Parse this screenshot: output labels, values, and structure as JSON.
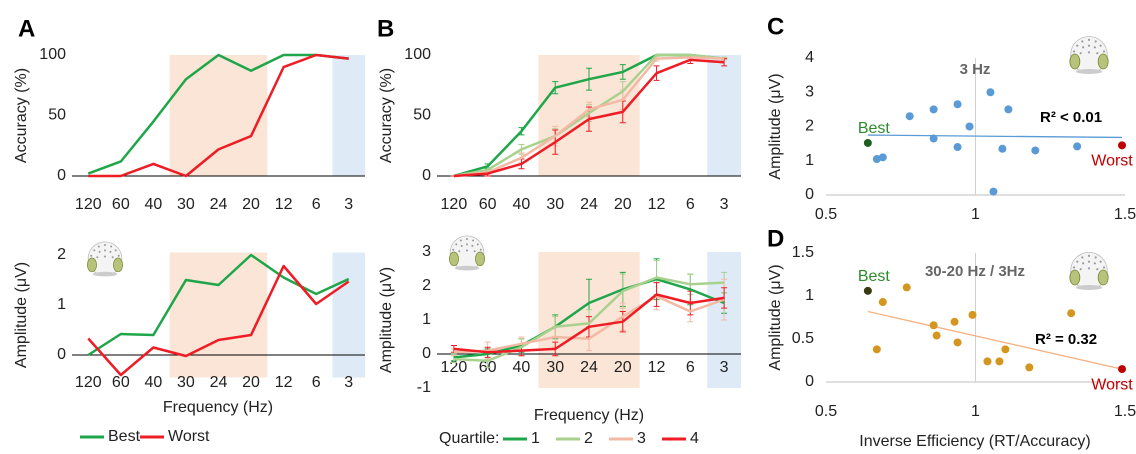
{
  "chart_data": [
    {
      "type": "line",
      "label": "A",
      "ylabel": "Accuracy (%)",
      "categories": [
        "120",
        "60",
        "40",
        "30",
        "24",
        "20",
        "12",
        "6",
        "3"
      ],
      "ylim": [
        0,
        100
      ],
      "yticks": [
        0,
        50,
        100
      ],
      "shaded": [
        {
          "from": "30",
          "to": "20",
          "color": "#fbe5d6"
        },
        {
          "from": "3",
          "to": "3",
          "color": "#deebf7"
        }
      ],
      "series": [
        {
          "name": "Best",
          "color": "#1fa64a",
          "values": [
            2,
            12,
            45,
            80,
            100,
            87,
            100,
            100,
            97
          ]
        },
        {
          "name": "Worst",
          "color": "#ee1c25",
          "values": [
            0,
            0,
            10,
            0,
            22,
            33,
            90,
            100,
            97
          ]
        }
      ]
    },
    {
      "type": "line",
      "ylabel": "Amplitude (μV)",
      "xlabel": "Frequency (Hz)",
      "categories": [
        "120",
        "60",
        "40",
        "30",
        "24",
        "20",
        "12",
        "6",
        "3"
      ],
      "ylim": [
        -0.45,
        2.05
      ],
      "yticks": [
        0,
        1,
        2
      ],
      "shaded": [
        {
          "from": "30",
          "to": "20",
          "color": "#fbe5d6"
        },
        {
          "from": "3",
          "to": "3",
          "color": "#deebf7"
        }
      ],
      "series": [
        {
          "color": "#1fa64a",
          "values": [
            0,
            0.42,
            0.4,
            1.5,
            1.4,
            2.0,
            1.55,
            1.22,
            1.52
          ]
        },
        {
          "color": "#ee1c25",
          "values": [
            0.33,
            -0.4,
            0.15,
            -0.02,
            0.3,
            0.4,
            1.78,
            1.02,
            1.47
          ]
        }
      ]
    },
    {
      "type": "line",
      "label": "B",
      "ylabel": "Accuracy (%)",
      "legend_title": "Quartile:",
      "categories": [
        "120",
        "60",
        "40",
        "30",
        "24",
        "20",
        "12",
        "6",
        "3"
      ],
      "ylim": [
        0,
        100
      ],
      "yticks": [
        0,
        50,
        100
      ],
      "shaded": [
        {
          "from": "30",
          "to": "20",
          "color": "#fbe5d6"
        },
        {
          "from": "3",
          "to": "3",
          "color": "#deebf7"
        }
      ],
      "series": [
        {
          "name": "1",
          "color": "#1fa64a",
          "values": [
            0,
            8,
            37,
            73,
            80,
            86,
            100,
            100,
            97
          ],
          "errors": [
            0,
            2,
            3,
            5,
            9,
            6,
            0,
            0,
            1
          ]
        },
        {
          "name": "2",
          "color": "#a9d18e",
          "values": [
            0,
            5,
            22,
            33,
            52,
            70,
            100,
            100,
            97
          ],
          "errors": [
            0,
            2,
            4,
            6,
            7,
            8,
            0,
            0,
            1
          ]
        },
        {
          "name": "3",
          "color": "#f4b9a4",
          "values": [
            0,
            3,
            15,
            33,
            55,
            63,
            97,
            98,
            97
          ],
          "errors": [
            0,
            2,
            4,
            8,
            6,
            8,
            2,
            2,
            1
          ]
        },
        {
          "name": "4",
          "color": "#ee1c25",
          "values": [
            0,
            2,
            10,
            28,
            47,
            53,
            85,
            96,
            94
          ],
          "errors": [
            0,
            2,
            4,
            10,
            10,
            9,
            6,
            3,
            3
          ]
        }
      ]
    },
    {
      "type": "line",
      "ylabel": "Amplitude (μV)",
      "xlabel": "Frequency (Hz)",
      "categories": [
        "120",
        "60",
        "40",
        "30",
        "24",
        "20",
        "12",
        "6",
        "3"
      ],
      "ylim": [
        -1,
        3
      ],
      "yticks": [
        -1,
        0,
        1,
        2,
        3
      ],
      "shaded": [
        {
          "from": "30",
          "to": "20",
          "color": "#fbe5d6"
        },
        {
          "from": "3",
          "to": "3",
          "color": "#deebf7"
        }
      ],
      "series": [
        {
          "color": "#1fa64a",
          "values": [
            -0.1,
            0,
            0.25,
            0.8,
            1.5,
            1.9,
            2.2,
            1.9,
            1.5
          ],
          "errors": [
            0.1,
            0.15,
            0.2,
            0.35,
            0.7,
            0.5,
            0.6,
            0.45,
            0.3
          ]
        },
        {
          "color": "#a9d18e",
          "values": [
            -0.15,
            -0.2,
            0.2,
            0.8,
            0.9,
            1.85,
            2.25,
            2.05,
            2.1
          ],
          "errors": [
            0.1,
            0.2,
            0.25,
            0.3,
            0.4,
            0.5,
            0.5,
            0.3,
            0.3
          ]
        },
        {
          "color": "#f4b9a4",
          "values": [
            0.05,
            0.1,
            0.3,
            0.5,
            0.45,
            1.1,
            1.7,
            1.25,
            1.6
          ],
          "errors": [
            0.1,
            0.25,
            0.2,
            0.3,
            0.35,
            0.4,
            0.4,
            0.3,
            0.6
          ]
        },
        {
          "color": "#ee1c25",
          "values": [
            0.15,
            0.05,
            0.1,
            0.15,
            0.8,
            0.95,
            1.75,
            1.5,
            1.65
          ],
          "errors": [
            0.1,
            0.15,
            0.15,
            0.2,
            0.3,
            0.3,
            0.35,
            0.35,
            0.3
          ]
        }
      ]
    },
    {
      "type": "scatter",
      "label": "C",
      "title": "3 Hz",
      "ylabel": "Amplitude (μV)",
      "annotation": "R² < 0.01",
      "best_label": "Best",
      "worst_label": "Worst",
      "xlim": [
        0.5,
        1.5
      ],
      "xticks": [
        0.5,
        1,
        1.5
      ],
      "ylim": [
        0,
        4
      ],
      "yticks": [
        0,
        1,
        2,
        3,
        4
      ],
      "yaxis_at": 1,
      "x": [
        0.64,
        0.67,
        0.69,
        0.78,
        0.86,
        0.86,
        0.94,
        0.94,
        0.98,
        1.05,
        1.06,
        1.09,
        1.11,
        1.2,
        1.34,
        1.49
      ],
      "y": [
        1.52,
        1.05,
        1.1,
        2.3,
        2.5,
        1.65,
        2.65,
        1.4,
        2.0,
        3.0,
        0.1,
        1.35,
        2.5,
        1.3,
        1.42,
        1.45
      ],
      "colors": [
        "#1e5e1e",
        "#5b9bd5",
        "#5b9bd5",
        "#5b9bd5",
        "#5b9bd5",
        "#5b9bd5",
        "#5b9bd5",
        "#5b9bd5",
        "#5b9bd5",
        "#5b9bd5",
        "#5b9bd5",
        "#5b9bd5",
        "#5b9bd5",
        "#5b9bd5",
        "#5b9bd5",
        "#c00000"
      ],
      "trend": {
        "x": [
          0.64,
          1.49
        ],
        "y": [
          1.75,
          1.68
        ],
        "color": "#5b9bd5"
      }
    },
    {
      "type": "scatter",
      "label": "D",
      "title": "30-20 Hz / 3Hz",
      "ylabel": "Amplitude (μV)",
      "xlabel": "Inverse Efficiency (RT/Accuracy)",
      "annotation": "R² = 0.32",
      "best_label": "Best",
      "worst_label": "Worst",
      "xlim": [
        0.5,
        1.5
      ],
      "xticks": [
        0.5,
        1,
        1.5
      ],
      "ylim": [
        0,
        1.5
      ],
      "yticks": [
        0,
        0.5,
        1,
        1.5
      ],
      "yaxis_at": 1,
      "x": [
        0.64,
        0.67,
        0.69,
        0.77,
        0.86,
        0.87,
        0.93,
        0.94,
        0.99,
        1.04,
        1.08,
        1.1,
        1.18,
        1.32,
        1.49
      ],
      "y": [
        1.06,
        0.38,
        0.93,
        1.1,
        0.66,
        0.54,
        0.7,
        0.46,
        0.78,
        0.24,
        0.24,
        0.38,
        0.17,
        0.8,
        0.15
      ],
      "colors": [
        "#3a3a10",
        "#d4961e",
        "#d4961e",
        "#d4961e",
        "#d4961e",
        "#d4961e",
        "#d4961e",
        "#d4961e",
        "#d4961e",
        "#d4961e",
        "#d4961e",
        "#d4961e",
        "#d4961e",
        "#d4961e",
        "#c00000"
      ],
      "trend": {
        "x": [
          0.64,
          1.49
        ],
        "y": [
          0.82,
          0.15
        ],
        "color": "#f4b183"
      }
    }
  ]
}
